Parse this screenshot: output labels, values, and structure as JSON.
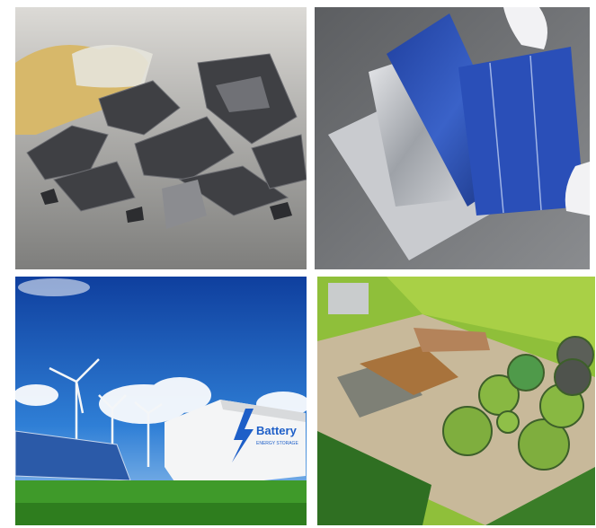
{
  "panels": {
    "battery_storage": {
      "label": "Battery",
      "sublabel": "ENERGY STORAGE"
    }
  }
}
